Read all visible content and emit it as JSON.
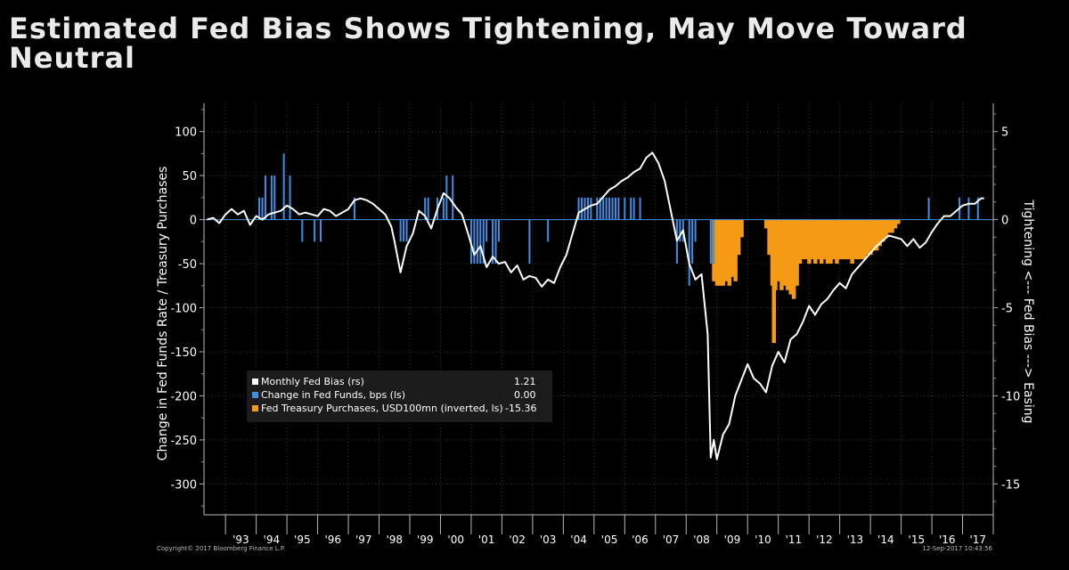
{
  "title": "Estimated Fed Bias Shows Tightening, May Move Toward Neutral",
  "footer": {
    "copyright": "Copyright© 2017 Bloomberg Finance L.P.",
    "timestamp": "12-Sep-2017 10:43:56"
  },
  "colors": {
    "background": "#000000",
    "bias": "#ffffff",
    "fedfunds": "#3f8fe6",
    "purchases": "#f59a12",
    "grid": "#3a3a3a"
  },
  "chart_data": {
    "type": "line",
    "title": "Estimated Fed Bias Shows Tightening, May Move Toward Neutral",
    "ylabel": "Change in Fed Funds Rate / Treasury Purchases",
    "y2label": "Tightening <--- Fed Bias ---> Easing",
    "ylim": [
      -335,
      132
    ],
    "y2lim": [
      -16.75,
      6.6
    ],
    "y2_inverted": true,
    "yticks": [
      "100",
      "50",
      "0",
      "-50",
      "-100",
      "-150",
      "-200",
      "-250",
      "-300"
    ],
    "y2ticks": [
      "5",
      "0",
      "-5",
      "-10",
      "-15"
    ],
    "xlim": [
      1992.3,
      2018.0
    ],
    "xticks": [
      "'93",
      "'94",
      "'95",
      "'96",
      "'97",
      "'98",
      "'99",
      "'00",
      "'01",
      "'02",
      "'03",
      "'04",
      "'05",
      "'06",
      "'07",
      "'08",
      "'09",
      "'10",
      "'11",
      "'12",
      "'13",
      "'14",
      "'15",
      "'16",
      "'17"
    ],
    "legend": {
      "position": "left-center",
      "entries": [
        {
          "label": "Monthly Fed Bias (rs)",
          "value": "1.21"
        },
        {
          "label": "Change in Fed Funds, bps (ls)",
          "value": "0.00"
        },
        {
          "label": "Fed Treasury Purchases, USD100mn (inverted, ls)",
          "value": "-15.36"
        }
      ]
    },
    "series": [
      {
        "name": "Monthly Fed Bias (rs)",
        "axis": "right",
        "style": "line",
        "points": [
          [
            1992.4,
            0.0
          ],
          [
            1992.6,
            0.1
          ],
          [
            1992.8,
            -0.2
          ],
          [
            1993.0,
            0.3
          ],
          [
            1993.2,
            0.6
          ],
          [
            1993.4,
            0.3
          ],
          [
            1993.6,
            0.5
          ],
          [
            1993.8,
            -0.3
          ],
          [
            1994.0,
            0.2
          ],
          [
            1994.2,
            0.0
          ],
          [
            1994.4,
            0.3
          ],
          [
            1994.6,
            0.4
          ],
          [
            1994.8,
            0.5
          ],
          [
            1995.0,
            0.8
          ],
          [
            1995.2,
            0.6
          ],
          [
            1995.4,
            0.3
          ],
          [
            1995.6,
            0.4
          ],
          [
            1995.8,
            0.3
          ],
          [
            1996.0,
            0.2
          ],
          [
            1996.2,
            0.6
          ],
          [
            1996.4,
            0.5
          ],
          [
            1996.6,
            0.2
          ],
          [
            1996.8,
            0.4
          ],
          [
            1997.0,
            0.6
          ],
          [
            1997.2,
            1.1
          ],
          [
            1997.4,
            1.2
          ],
          [
            1997.6,
            1.1
          ],
          [
            1997.8,
            0.9
          ],
          [
            1998.0,
            0.6
          ],
          [
            1998.2,
            0.3
          ],
          [
            1998.4,
            -0.4
          ],
          [
            1998.5,
            -1.2
          ],
          [
            1998.7,
            -3.0
          ],
          [
            1998.9,
            -1.5
          ],
          [
            1999.1,
            -0.8
          ],
          [
            1999.3,
            0.5
          ],
          [
            1999.5,
            0.2
          ],
          [
            1999.7,
            -0.5
          ],
          [
            1999.9,
            0.6
          ],
          [
            2000.1,
            1.5
          ],
          [
            2000.3,
            1.2
          ],
          [
            2000.5,
            0.7
          ],
          [
            2000.7,
            0.3
          ],
          [
            2000.9,
            -0.8
          ],
          [
            2001.1,
            -2.0
          ],
          [
            2001.3,
            -1.5
          ],
          [
            2001.5,
            -2.7
          ],
          [
            2001.7,
            -2.1
          ],
          [
            2001.9,
            -2.5
          ],
          [
            2002.1,
            -2.4
          ],
          [
            2002.3,
            -3.0
          ],
          [
            2002.5,
            -2.6
          ],
          [
            2002.7,
            -3.4
          ],
          [
            2002.9,
            -3.2
          ],
          [
            2003.1,
            -3.3
          ],
          [
            2003.3,
            -3.8
          ],
          [
            2003.5,
            -3.4
          ],
          [
            2003.7,
            -3.6
          ],
          [
            2003.9,
            -2.7
          ],
          [
            2004.1,
            -2.0
          ],
          [
            2004.3,
            -0.8
          ],
          [
            2004.5,
            0.4
          ],
          [
            2004.7,
            0.6
          ],
          [
            2004.9,
            0.8
          ],
          [
            2005.1,
            0.9
          ],
          [
            2005.3,
            1.3
          ],
          [
            2005.5,
            1.7
          ],
          [
            2005.7,
            1.9
          ],
          [
            2005.9,
            2.2
          ],
          [
            2006.1,
            2.4
          ],
          [
            2006.3,
            2.7
          ],
          [
            2006.5,
            2.9
          ],
          [
            2006.7,
            3.5
          ],
          [
            2006.9,
            3.8
          ],
          [
            2007.1,
            3.2
          ],
          [
            2007.3,
            2.2
          ],
          [
            2007.5,
            0.5
          ],
          [
            2007.7,
            -1.2
          ],
          [
            2007.9,
            -0.6
          ],
          [
            2008.1,
            -2.5
          ],
          [
            2008.3,
            -3.4
          ],
          [
            2008.5,
            -3.1
          ],
          [
            2008.7,
            -6.5
          ],
          [
            2008.8,
            -13.5
          ],
          [
            2008.9,
            -12.5
          ],
          [
            2009.0,
            -13.6
          ],
          [
            2009.2,
            -12.2
          ],
          [
            2009.4,
            -11.6
          ],
          [
            2009.6,
            -10.0
          ],
          [
            2009.8,
            -9.1
          ],
          [
            2010.0,
            -8.2
          ],
          [
            2010.2,
            -9.0
          ],
          [
            2010.4,
            -9.3
          ],
          [
            2010.6,
            -9.8
          ],
          [
            2010.8,
            -8.3
          ],
          [
            2011.0,
            -7.5
          ],
          [
            2011.2,
            -8.1
          ],
          [
            2011.4,
            -6.8
          ],
          [
            2011.6,
            -6.5
          ],
          [
            2011.8,
            -5.8
          ],
          [
            2012.0,
            -4.9
          ],
          [
            2012.2,
            -5.4
          ],
          [
            2012.4,
            -4.8
          ],
          [
            2012.6,
            -4.5
          ],
          [
            2012.8,
            -4.0
          ],
          [
            2013.0,
            -3.6
          ],
          [
            2013.2,
            -3.9
          ],
          [
            2013.4,
            -3.1
          ],
          [
            2013.6,
            -2.7
          ],
          [
            2013.8,
            -2.3
          ],
          [
            2014.0,
            -1.9
          ],
          [
            2014.2,
            -1.5
          ],
          [
            2014.4,
            -1.2
          ],
          [
            2014.6,
            -0.9
          ],
          [
            2014.8,
            -1.0
          ],
          [
            2015.0,
            -1.1
          ],
          [
            2015.2,
            -1.5
          ],
          [
            2015.4,
            -1.1
          ],
          [
            2015.6,
            -1.6
          ],
          [
            2015.8,
            -1.3
          ],
          [
            2016.0,
            -0.7
          ],
          [
            2016.2,
            -0.2
          ],
          [
            2016.4,
            0.2
          ],
          [
            2016.6,
            0.2
          ],
          [
            2016.8,
            0.5
          ],
          [
            2017.0,
            0.8
          ],
          [
            2017.2,
            0.9
          ],
          [
            2017.4,
            0.9
          ],
          [
            2017.6,
            1.2
          ],
          [
            2017.7,
            1.21
          ]
        ]
      },
      {
        "name": "Change in Fed Funds, bps (ls)",
        "axis": "left",
        "style": "bar",
        "points": [
          [
            1994.1,
            25
          ],
          [
            1994.2,
            25
          ],
          [
            1994.3,
            50
          ],
          [
            1994.5,
            50
          ],
          [
            1994.6,
            50
          ],
          [
            1994.9,
            75
          ],
          [
            1995.1,
            50
          ],
          [
            1995.5,
            -25
          ],
          [
            1995.9,
            -25
          ],
          [
            1996.1,
            -25
          ],
          [
            1997.2,
            25
          ],
          [
            1998.7,
            -25
          ],
          [
            1998.8,
            -25
          ],
          [
            1998.9,
            -25
          ],
          [
            1999.5,
            25
          ],
          [
            1999.6,
            25
          ],
          [
            1999.9,
            25
          ],
          [
            2000.1,
            25
          ],
          [
            2000.2,
            50
          ],
          [
            2000.4,
            50
          ],
          [
            2001.0,
            -50
          ],
          [
            2001.1,
            -50
          ],
          [
            2001.2,
            -50
          ],
          [
            2001.3,
            -50
          ],
          [
            2001.4,
            -50
          ],
          [
            2001.5,
            -25
          ],
          [
            2001.7,
            -50
          ],
          [
            2001.8,
            -50
          ],
          [
            2001.9,
            -25
          ],
          [
            2002.9,
            -50
          ],
          [
            2003.5,
            -25
          ],
          [
            2004.5,
            25
          ],
          [
            2004.6,
            25
          ],
          [
            2004.7,
            25
          ],
          [
            2004.8,
            25
          ],
          [
            2004.9,
            25
          ],
          [
            2005.1,
            25
          ],
          [
            2005.2,
            25
          ],
          [
            2005.3,
            25
          ],
          [
            2005.4,
            25
          ],
          [
            2005.5,
            25
          ],
          [
            2005.6,
            25
          ],
          [
            2005.7,
            25
          ],
          [
            2005.8,
            25
          ],
          [
            2006.0,
            25
          ],
          [
            2006.2,
            25
          ],
          [
            2006.3,
            25
          ],
          [
            2006.5,
            25
          ],
          [
            2007.7,
            -50
          ],
          [
            2007.8,
            -25
          ],
          [
            2007.9,
            -25
          ],
          [
            2008.1,
            -75
          ],
          [
            2008.2,
            -50
          ],
          [
            2008.3,
            -25
          ],
          [
            2008.8,
            -50
          ],
          [
            2008.9,
            -50
          ],
          [
            2015.9,
            25
          ],
          [
            2016.9,
            25
          ],
          [
            2017.2,
            25
          ],
          [
            2017.5,
            25
          ]
        ]
      },
      {
        "name": "Fed Treasury Purchases, USD100mn (inverted, ls)",
        "axis": "left",
        "style": "bar",
        "points": [
          [
            2008.9,
            -70
          ],
          [
            2009.0,
            -75
          ],
          [
            2009.1,
            -75
          ],
          [
            2009.2,
            -75
          ],
          [
            2009.3,
            -70
          ],
          [
            2009.4,
            -75
          ],
          [
            2009.5,
            -65
          ],
          [
            2009.6,
            -70
          ],
          [
            2009.7,
            -40
          ],
          [
            2009.8,
            -20
          ],
          [
            2010.6,
            -10
          ],
          [
            2010.7,
            -40
          ],
          [
            2010.8,
            -75
          ],
          [
            2010.85,
            -140
          ],
          [
            2010.9,
            -80
          ],
          [
            2011.0,
            -70
          ],
          [
            2011.1,
            -80
          ],
          [
            2011.2,
            -75
          ],
          [
            2011.3,
            -80
          ],
          [
            2011.4,
            -85
          ],
          [
            2011.5,
            -90
          ],
          [
            2011.6,
            -75
          ],
          [
            2011.7,
            -50
          ],
          [
            2011.8,
            -45
          ],
          [
            2011.9,
            -45
          ],
          [
            2012.0,
            -50
          ],
          [
            2012.1,
            -45
          ],
          [
            2012.2,
            -50
          ],
          [
            2012.3,
            -45
          ],
          [
            2012.4,
            -50
          ],
          [
            2012.5,
            -45
          ],
          [
            2012.6,
            -50
          ],
          [
            2012.7,
            -50
          ],
          [
            2012.8,
            -45
          ],
          [
            2012.9,
            -50
          ],
          [
            2013.0,
            -45
          ],
          [
            2013.1,
            -45
          ],
          [
            2013.2,
            -45
          ],
          [
            2013.3,
            -45
          ],
          [
            2013.4,
            -50
          ],
          [
            2013.5,
            -45
          ],
          [
            2013.6,
            -45
          ],
          [
            2013.7,
            -45
          ],
          [
            2013.8,
            -45
          ],
          [
            2013.9,
            -40
          ],
          [
            2014.0,
            -40
          ],
          [
            2014.1,
            -35
          ],
          [
            2014.2,
            -35
          ],
          [
            2014.3,
            -30
          ],
          [
            2014.4,
            -25
          ],
          [
            2014.5,
            -20
          ],
          [
            2014.6,
            -15
          ],
          [
            2014.7,
            -15
          ],
          [
            2014.8,
            -10
          ],
          [
            2014.9,
            -5
          ]
        ]
      }
    ]
  }
}
